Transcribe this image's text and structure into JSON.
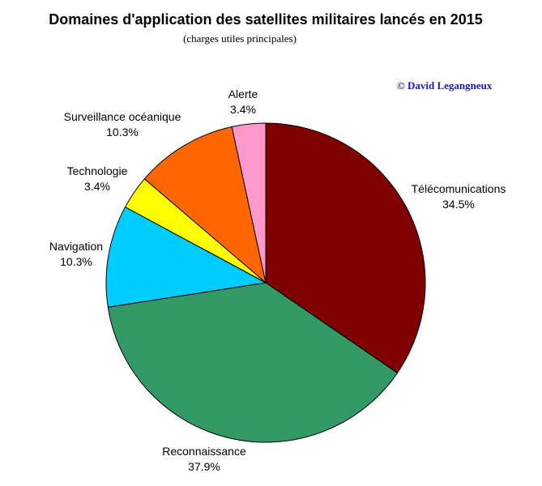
{
  "chart_data": {
    "type": "pie",
    "title": "Domaines d'application des satellites militaires lancés en 2015",
    "subtitle": "(charges utiles principales)",
    "copyright": "© David Legangneux",
    "slices": [
      {
        "label": "Télécomunications",
        "percent_label": "34.5%",
        "value": 34.5,
        "color": "#7f0000"
      },
      {
        "label": "Reconnaissance",
        "percent_label": "37.9%",
        "value": 37.9,
        "color": "#339966"
      },
      {
        "label": "Navigation",
        "percent_label": "10.3%",
        "value": 10.3,
        "color": "#00ccff"
      },
      {
        "label": "Technologie",
        "percent_label": "3.4%",
        "value": 3.4,
        "color": "#ffff00"
      },
      {
        "label": "Surveillance océanique",
        "percent_label": "10.3%",
        "value": 10.3,
        "color": "#ff6600"
      },
      {
        "label": "Alerte",
        "percent_label": "3.4%",
        "value": 3.4,
        "color": "#ff99cc"
      }
    ]
  }
}
